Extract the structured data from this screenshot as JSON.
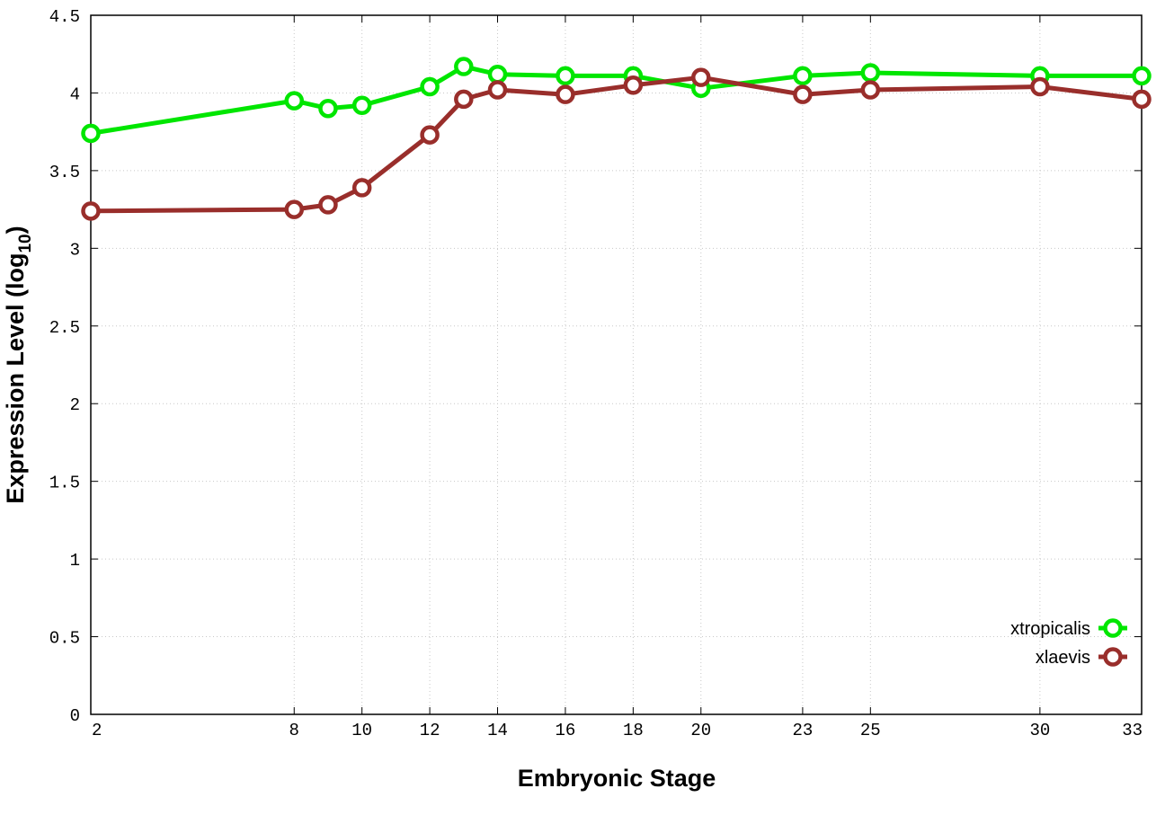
{
  "chart_data": {
    "type": "line",
    "xlabel": "Embryonic Stage",
    "ylabel_main": "Expression Level (log",
    "ylabel_sub": "10",
    "ylabel_close": ")",
    "xlim": [
      2,
      33
    ],
    "ylim": [
      0,
      4.5
    ],
    "x_ticks": [
      2,
      8,
      10,
      12,
      14,
      16,
      18,
      20,
      23,
      25,
      30,
      33
    ],
    "y_ticks": [
      0,
      0.5,
      1,
      1.5,
      2,
      2.5,
      3,
      3.5,
      4,
      4.5
    ],
    "y_tick_labels": [
      "0",
      "0.5",
      "1",
      "1.5",
      "2",
      "2.5",
      "3",
      "3.5",
      "4",
      "4.5"
    ],
    "grid": true,
    "legend_position": "bottom-right",
    "series": [
      {
        "name": "xtropicalis",
        "color": "#00e600",
        "x": [
          2,
          8,
          9,
          10,
          12,
          13,
          14,
          16,
          18,
          20,
          23,
          25,
          30,
          33
        ],
        "y": [
          3.74,
          3.95,
          3.9,
          3.92,
          4.04,
          4.17,
          4.12,
          4.11,
          4.11,
          4.03,
          4.11,
          4.13,
          4.11,
          4.11
        ]
      },
      {
        "name": "xlaevis",
        "color": "#992e2b",
        "x": [
          2,
          8,
          9,
          10,
          12,
          13,
          14,
          16,
          18,
          20,
          23,
          25,
          30,
          33
        ],
        "y": [
          3.24,
          3.25,
          3.28,
          3.39,
          3.73,
          3.96,
          4.02,
          3.99,
          4.05,
          4.1,
          3.99,
          4.02,
          4.04,
          3.96
        ]
      }
    ]
  }
}
